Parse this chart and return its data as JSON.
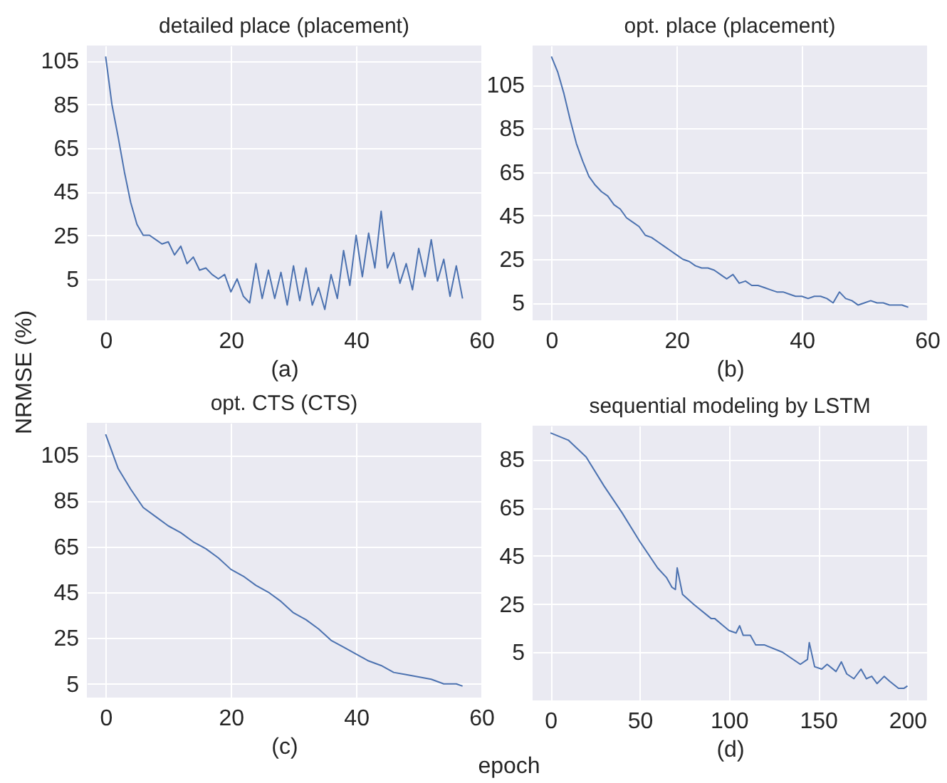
{
  "chart_data": [
    {
      "type": "line",
      "title": "detailed place (placement)",
      "xlabel": "(a)",
      "ylabel": "NRMSE (%)",
      "grid": true,
      "x": [
        0,
        1,
        2,
        3,
        4,
        5,
        6,
        7,
        8,
        9,
        10,
        11,
        12,
        13,
        14,
        15,
        16,
        17,
        18,
        19,
        20,
        21,
        22,
        23,
        24,
        25,
        26,
        27,
        28,
        29,
        30,
        31,
        32,
        33,
        34,
        35,
        36,
        37,
        38,
        39,
        40,
        41,
        42,
        43,
        44,
        45,
        46,
        47,
        48,
        49,
        50,
        51,
        52,
        53,
        54,
        55,
        56,
        57
      ],
      "series": [
        {
          "color": "#4c72b0",
          "values": [
            107,
            85,
            70,
            54,
            40,
            30,
            25,
            25,
            23,
            21,
            22,
            16,
            20,
            12,
            15,
            9,
            10,
            7,
            5,
            7,
            -1,
            5,
            -3,
            -6,
            12,
            -4,
            9,
            -4,
            8,
            -7,
            11,
            -5,
            10,
            -7,
            1,
            -9,
            7,
            -4,
            18,
            2,
            25,
            6,
            26,
            10,
            36,
            10,
            17,
            3,
            12,
            0,
            19,
            6,
            23,
            4,
            14,
            -3,
            11,
            -4
          ]
        }
      ],
      "xlim": [
        -3,
        60
      ],
      "xticks": [
        0,
        20,
        40,
        60
      ],
      "ylim": [
        -14,
        112
      ],
      "yticks": [
        5,
        25,
        45,
        65,
        85,
        105
      ]
    },
    {
      "type": "line",
      "title": "opt. place (placement)",
      "xlabel": "(b)",
      "grid": true,
      "x": [
        0,
        1,
        2,
        3,
        4,
        5,
        6,
        7,
        8,
        9,
        10,
        11,
        12,
        13,
        14,
        15,
        16,
        17,
        18,
        19,
        20,
        21,
        22,
        23,
        24,
        25,
        26,
        27,
        28,
        29,
        30,
        31,
        32,
        33,
        34,
        35,
        36,
        37,
        38,
        39,
        40,
        41,
        42,
        43,
        44,
        45,
        46,
        47,
        48,
        49,
        50,
        51,
        52,
        53,
        54,
        55,
        56,
        57
      ],
      "series": [
        {
          "color": "#4c72b0",
          "values": [
            118,
            111,
            101,
            89,
            78,
            70,
            63,
            59,
            56,
            54,
            50,
            48,
            44,
            42,
            40,
            36,
            35,
            33,
            31,
            29,
            27,
            25,
            24,
            22,
            21,
            21,
            20,
            18,
            16,
            18,
            14,
            15,
            13,
            13,
            12,
            11,
            10,
            10,
            9,
            8,
            8,
            7,
            8,
            8,
            7,
            5,
            10,
            7,
            6,
            4,
            5,
            6,
            5,
            5,
            4,
            4,
            4,
            3
          ]
        }
      ],
      "xlim": [
        -3,
        60
      ],
      "xticks": [
        0,
        20,
        40,
        60
      ],
      "ylim": [
        -3,
        123
      ],
      "yticks": [
        5,
        25,
        45,
        65,
        85,
        105
      ]
    },
    {
      "type": "line",
      "title": "opt. CTS (CTS)",
      "xlabel": "(c)",
      "grid": true,
      "x": [
        0,
        2,
        4,
        6,
        8,
        10,
        12,
        14,
        16,
        18,
        20,
        22,
        24,
        26,
        28,
        30,
        32,
        34,
        36,
        38,
        40,
        42,
        44,
        46,
        48,
        50,
        52,
        54,
        56,
        57
      ],
      "series": [
        {
          "color": "#4c72b0",
          "values": [
            114,
            99,
            90,
            82,
            78,
            74,
            71,
            67,
            64,
            60,
            55,
            52,
            48,
            45,
            41,
            36,
            33,
            29,
            24,
            21,
            18,
            15,
            13,
            10,
            9,
            8,
            7,
            5,
            5,
            4
          ]
        }
      ],
      "xlim": [
        -3,
        60
      ],
      "xticks": [
        0,
        20,
        40,
        60
      ],
      "ylim": [
        -1,
        119
      ],
      "yticks": [
        5,
        25,
        45,
        65,
        85,
        105
      ]
    },
    {
      "type": "line",
      "title": "sequential  modeling by LSTM",
      "xlabel": "(d)",
      "grid": true,
      "annotations": [
        "epoch"
      ],
      "x": [
        0,
        10,
        20,
        30,
        40,
        50,
        60,
        65,
        68,
        70,
        71,
        74,
        80,
        90,
        92,
        100,
        104,
        106,
        108,
        112,
        115,
        120,
        130,
        140,
        144,
        145,
        148,
        152,
        155,
        160,
        163,
        166,
        170,
        174,
        177,
        180,
        183,
        187,
        190,
        195,
        198,
        200
      ],
      "series": [
        {
          "color": "#4c72b0",
          "values": [
            96,
            93,
            86,
            74,
            63,
            51,
            40,
            36,
            32,
            31,
            40,
            29,
            25,
            19,
            19,
            14,
            13,
            16,
            12,
            12,
            8,
            8,
            5,
            0,
            2,
            9,
            -1,
            -2,
            0,
            -3,
            1,
            -4,
            -6,
            -2,
            -6,
            -5,
            -8,
            -5,
            -7,
            -10,
            -10,
            -9
          ]
        }
      ],
      "xlim": [
        -10,
        211
      ],
      "xticks": [
        0,
        50,
        100,
        150,
        200
      ],
      "ylim": [
        -15,
        99
      ],
      "yticks": [
        5,
        25,
        45,
        65,
        85
      ]
    }
  ]
}
